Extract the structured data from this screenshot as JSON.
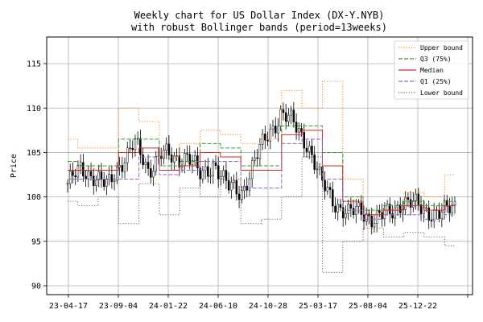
{
  "chart_data": {
    "type": "line",
    "title": "Weekly chart for US Dollar Index (DX-Y.NYB)",
    "subtitle": "with robust Bollinger bands (period=13weeks)",
    "ylabel": "Price",
    "xlabel": "",
    "ylim": [
      89,
      118
    ],
    "yticks": [
      90,
      95,
      100,
      105,
      110,
      115
    ],
    "xticks": [
      "23-04-17",
      "23-09-04",
      "24-01-22",
      "24-06-10",
      "24-10-28",
      "25-03-17",
      "25-08-04",
      "25-12-22"
    ],
    "grid": true,
    "legend_position": "top-right",
    "x": [
      "23-04-17",
      "23-06-12",
      "23-08-07",
      "23-10-02",
      "23-11-27",
      "24-01-22",
      "24-03-18",
      "24-05-13",
      "24-07-08",
      "24-09-02",
      "24-10-28",
      "24-12-23",
      "25-02-17",
      "25-04-14",
      "25-06-09",
      "25-08-04",
      "25-09-29",
      "25-11-24",
      "26-01-19",
      "26-03-16"
    ],
    "series": [
      {
        "name": "Upper bound",
        "color": "#ff7f0e",
        "style": "dotted",
        "values": [
          106.5,
          105.5,
          105.5,
          110.0,
          108.5,
          104.5,
          106.0,
          107.5,
          107.0,
          106.0,
          106.5,
          112.0,
          110.0,
          113.0,
          102.0,
          98.5,
          98.5,
          100.5,
          100.0,
          102.5
        ]
      },
      {
        "name": "Q3 (75%)",
        "color": "#2ca02c",
        "style": "dashed",
        "values": [
          104.0,
          103.5,
          103.5,
          106.5,
          106.5,
          103.5,
          104.0,
          106.0,
          105.5,
          103.5,
          103.5,
          108.0,
          108.0,
          105.0,
          100.0,
          98.5,
          99.0,
          99.5,
          99.0,
          99.5
        ]
      },
      {
        "name": "Median",
        "color": "#d62728",
        "style": "solid",
        "values": [
          103.0,
          103.0,
          103.0,
          105.0,
          105.5,
          103.0,
          103.5,
          105.0,
          104.5,
          103.0,
          103.0,
          107.0,
          107.5,
          103.5,
          99.5,
          98.0,
          98.5,
          99.0,
          98.5,
          99.0
        ]
      },
      {
        "name": "Q1 (25%)",
        "color": "#9467bd",
        "style": "dashed",
        "values": [
          102.0,
          102.0,
          102.0,
          102.0,
          104.5,
          102.5,
          103.0,
          104.0,
          104.0,
          101.0,
          101.0,
          106.0,
          106.5,
          102.0,
          98.5,
          97.5,
          98.0,
          98.0,
          97.5,
          98.0
        ]
      },
      {
        "name": "Lower bound",
        "color": "#8c564b",
        "style": "dotted",
        "values": [
          99.5,
          99.0,
          100.0,
          97.0,
          101.5,
          98.0,
          101.0,
          100.0,
          102.0,
          97.0,
          97.5,
          100.0,
          104.5,
          91.5,
          95.0,
          96.5,
          95.5,
          96.0,
          95.5,
          94.5
        ]
      }
    ],
    "candles_close": [
      101.5,
      103.0,
      102.5,
      101.0,
      104.0,
      106.0,
      103.0,
      105.0,
      104.0,
      105.0,
      102.0,
      104.0,
      101.0,
      100.5,
      104.0,
      107.0,
      109.5,
      108.0,
      106.0,
      101.5,
      99.5,
      98.0,
      98.5,
      97.5,
      98.0,
      99.5,
      99.0,
      98.5,
      98.0,
      99.0
    ]
  }
}
